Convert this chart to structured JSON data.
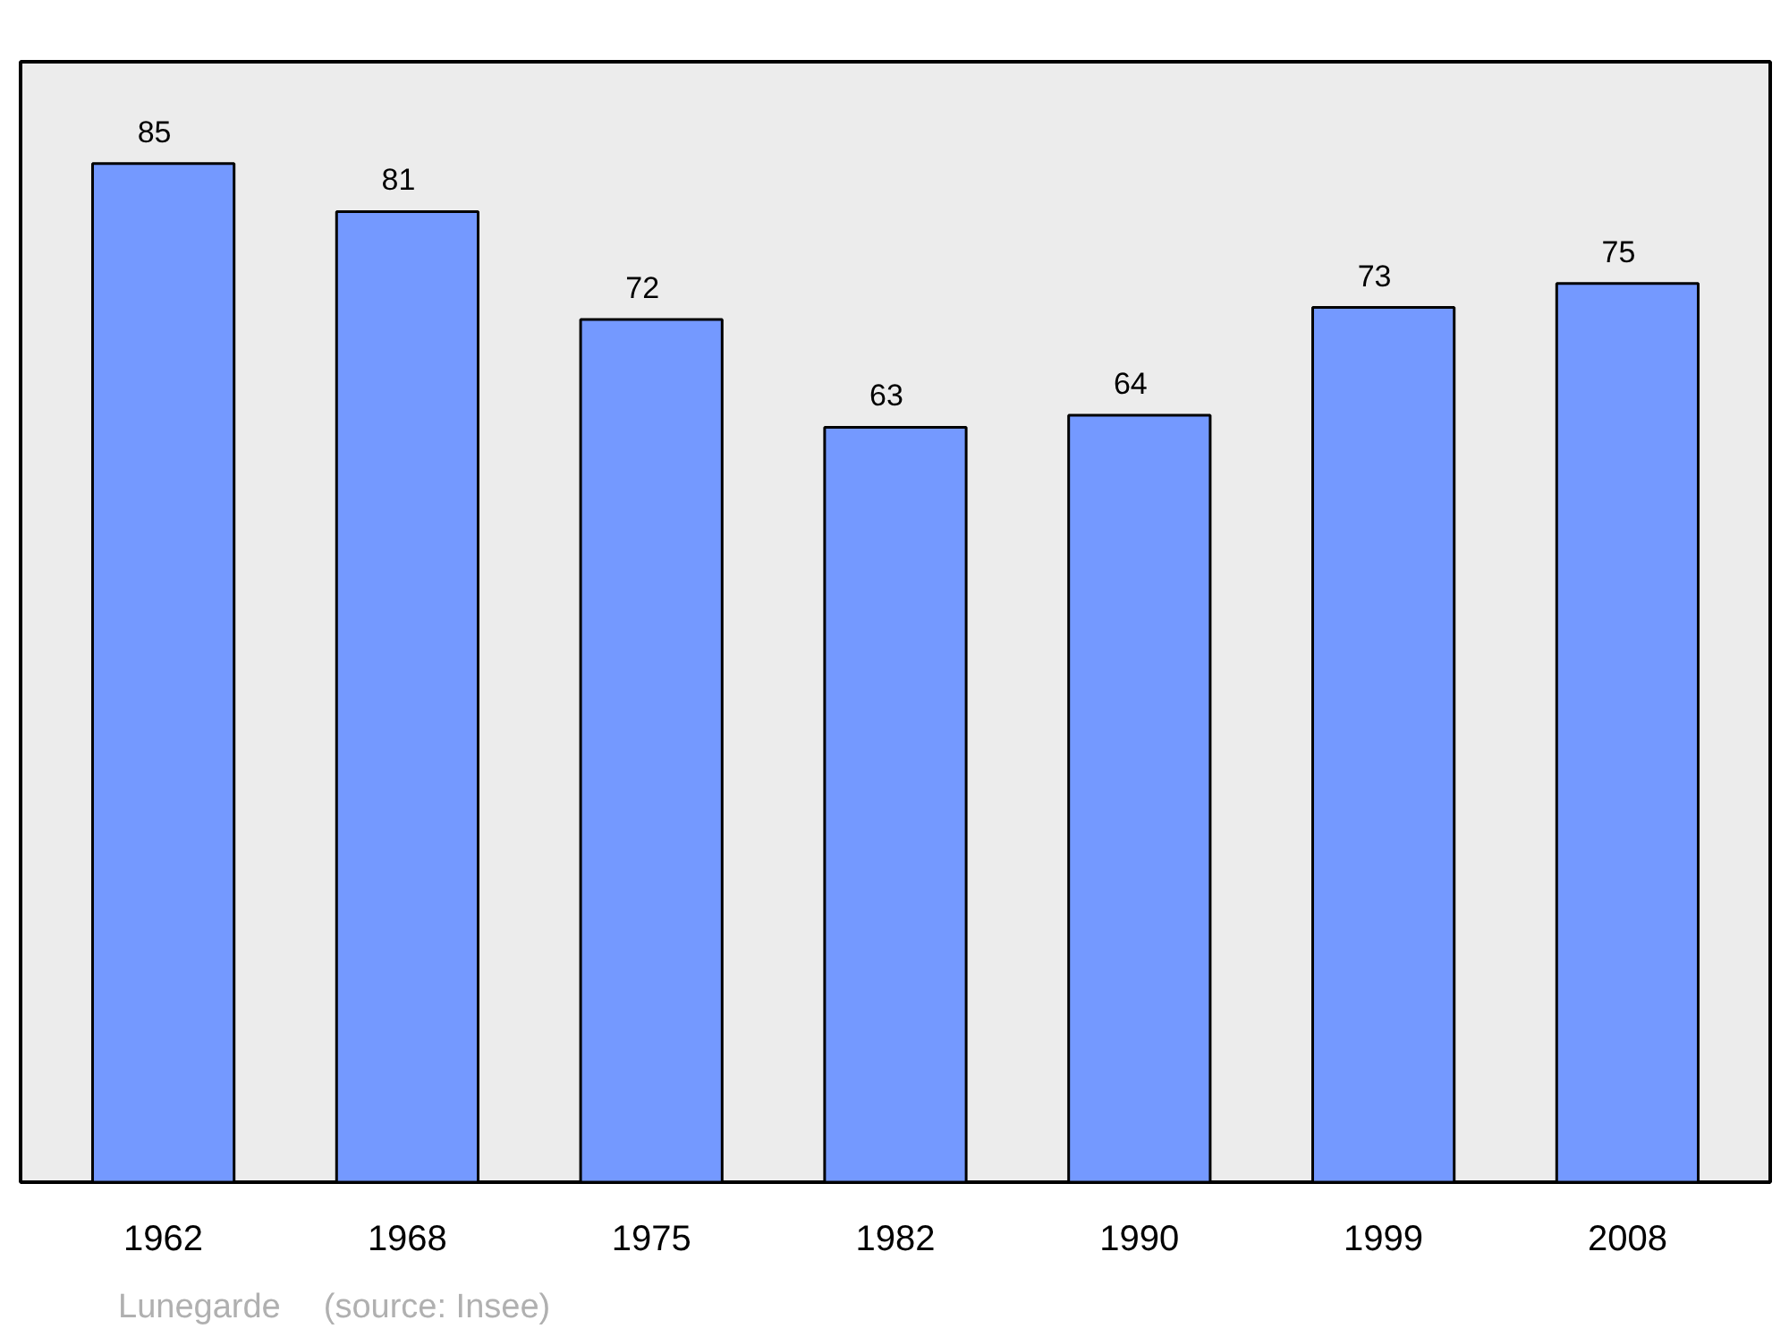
{
  "chart_data": {
    "type": "bar",
    "categories": [
      "1962",
      "1968",
      "1975",
      "1982",
      "1990",
      "1999",
      "2008"
    ],
    "values": [
      85,
      81,
      72,
      63,
      64,
      73,
      75
    ],
    "color": "#7499ff",
    "data_labels": true,
    "ylim": [
      0,
      93.5
    ],
    "tick_labels": "x",
    "grid": false,
    "annotations": [
      "Lunegarde",
      "(source: Insee)"
    ]
  }
}
